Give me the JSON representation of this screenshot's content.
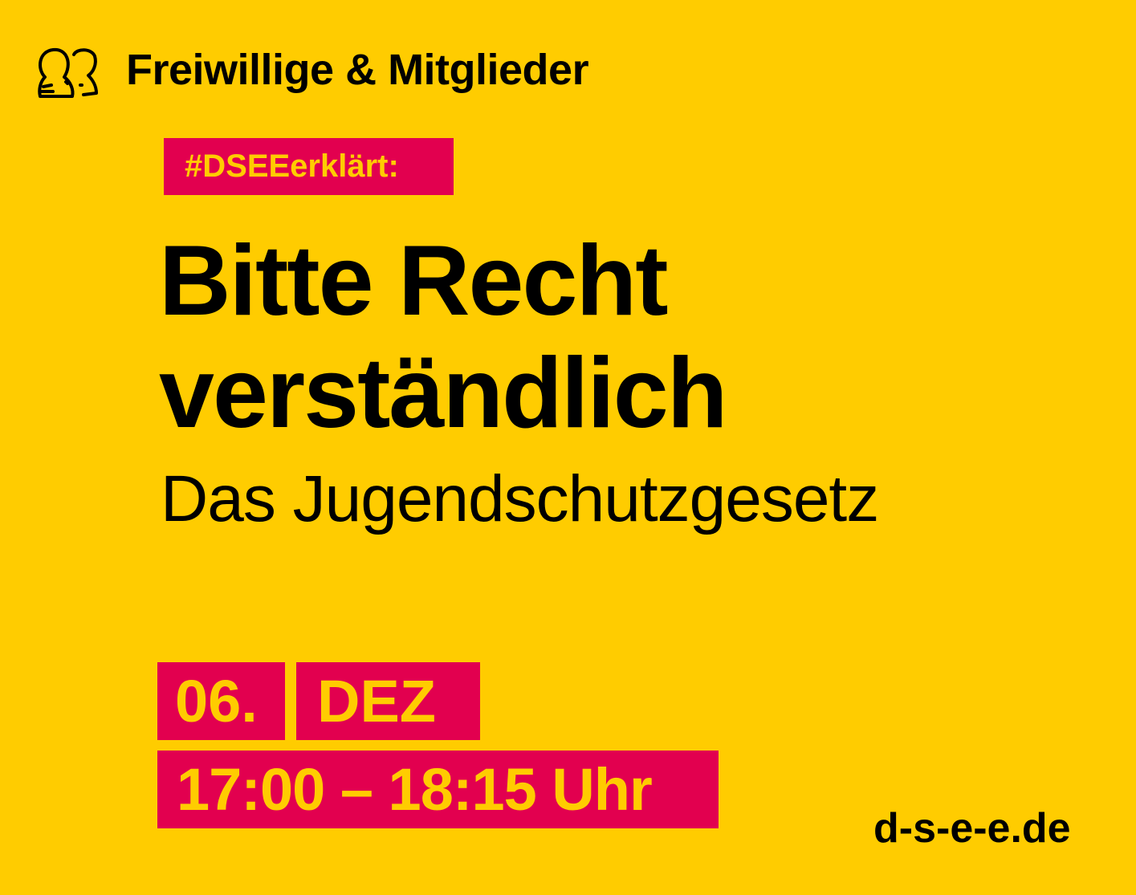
{
  "header": {
    "icon": "people-icon",
    "label": "Freiwillige & Mitglieder"
  },
  "tag": "#DSEEerklärt:",
  "title": {
    "line1": "Bitte Recht",
    "line2": "verständlich"
  },
  "subtitle": "Das Jugendschutzgesetz",
  "event": {
    "day": "06.",
    "month": "DEZ",
    "time": "17:00 – 18:15 Uhr"
  },
  "url": "d-s-e-e.de",
  "colors": {
    "background": "#FFCC00",
    "accent": "#E2004F",
    "text": "#000000"
  }
}
